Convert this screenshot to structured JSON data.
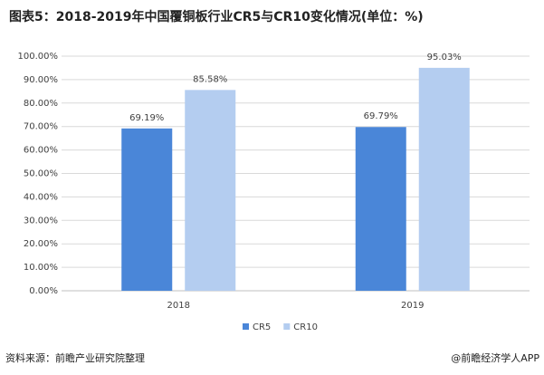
{
  "chart_data": {
    "type": "bar",
    "title": "图表5：2018-2019年中国覆铜板行业CR5与CR10变化情况(单位：%)",
    "categories": [
      "2018",
      "2019"
    ],
    "series": [
      {
        "name": "CR5",
        "color": "#4a86d8",
        "values": [
          69.19,
          69.79
        ],
        "value_labels": [
          "69.19%",
          "69.79%"
        ]
      },
      {
        "name": "CR10",
        "color": "#b4cdf0",
        "values": [
          85.58,
          95.03
        ],
        "value_labels": [
          "85.58%",
          "95.03%"
        ]
      }
    ],
    "ylim": [
      0,
      100
    ],
    "yticks": [
      {
        "value": 0,
        "label": "0.00%"
      },
      {
        "value": 10,
        "label": "10.00%"
      },
      {
        "value": 20,
        "label": "20.00%"
      },
      {
        "value": 30,
        "label": "30.00%"
      },
      {
        "value": 40,
        "label": "40.00%"
      },
      {
        "value": 50,
        "label": "50.00%"
      },
      {
        "value": 60,
        "label": "60.00%"
      },
      {
        "value": 70,
        "label": "70.00%"
      },
      {
        "value": 80,
        "label": "80.00%"
      },
      {
        "value": 90,
        "label": "90.00%"
      },
      {
        "value": 100,
        "label": "100.00%"
      }
    ],
    "grid": true,
    "legend": "bottom"
  },
  "footer": {
    "source": "资料来源：前瞻产业研究院整理",
    "credit": "@前瞻经济学人APP"
  }
}
